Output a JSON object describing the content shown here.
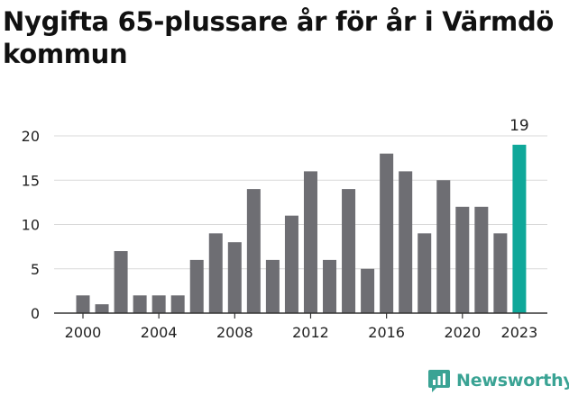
{
  "title": "Nygifta 65-plussare år för år i Värmdö kommun",
  "brand": {
    "name": "Newsworthy",
    "icon": "newsworthy-logo-icon",
    "color": "#3aa394"
  },
  "colors": {
    "bar": "#6e6e73",
    "highlight": "#0fa89a",
    "grid": "#d9d9d9",
    "axis": "#333333",
    "text": "#222222"
  },
  "chart_data": {
    "type": "bar",
    "title": "Nygifta 65-plussare år för år i Värmdö kommun",
    "xlabel": "",
    "ylabel": "",
    "categories": [
      2000,
      2001,
      2002,
      2003,
      2004,
      2005,
      2006,
      2007,
      2008,
      2009,
      2010,
      2011,
      2012,
      2013,
      2014,
      2015,
      2016,
      2017,
      2018,
      2019,
      2020,
      2021,
      2022,
      2023
    ],
    "values": [
      2,
      1,
      7,
      2,
      2,
      2,
      6,
      9,
      8,
      14,
      6,
      11,
      16,
      6,
      14,
      5,
      18,
      16,
      9,
      15,
      12,
      12,
      9,
      19
    ],
    "ylim": [
      0,
      20
    ],
    "yticks": [
      0,
      5,
      10,
      15,
      20
    ],
    "xticks": [
      2000,
      2004,
      2008,
      2012,
      2016,
      2020,
      2023
    ],
    "highlight": {
      "category": 2023,
      "label": "19"
    },
    "grid": true
  }
}
